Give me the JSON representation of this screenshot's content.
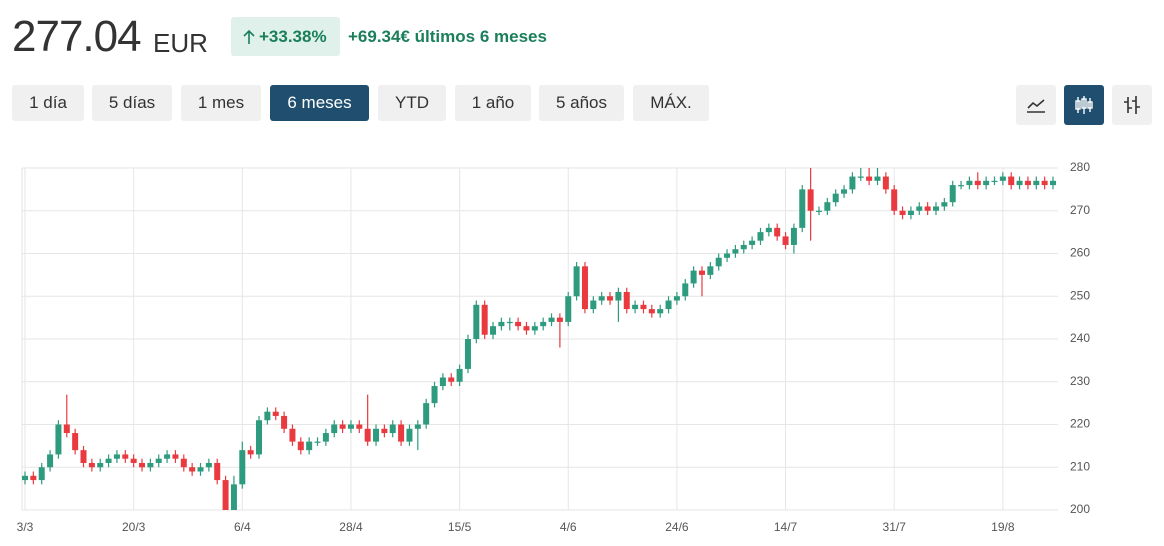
{
  "header": {
    "price": "277.04",
    "currency": "EUR",
    "change_pct": "+33.38%",
    "change_abs": "+69.34€ últimos 6 meses"
  },
  "buttons": [
    "1 día",
    "5 días",
    "1 mes",
    "6 meses",
    "YTD",
    "1 año",
    "5 años",
    "MÁX."
  ],
  "active_button": 3,
  "chart_data": {
    "type": "candlestick",
    "categories": [
      "3/3",
      null,
      null,
      null,
      null,
      null,
      null,
      null,
      null,
      null,
      null,
      null,
      null,
      "20/3",
      null,
      null,
      null,
      null,
      null,
      null,
      null,
      null,
      null,
      null,
      null,
      null,
      "6/4",
      null,
      null,
      null,
      null,
      null,
      null,
      null,
      null,
      null,
      null,
      null,
      null,
      "28/4",
      null,
      null,
      null,
      null,
      null,
      null,
      null,
      null,
      null,
      null,
      null,
      null,
      "15/5",
      null,
      null,
      null,
      null,
      null,
      null,
      null,
      null,
      null,
      null,
      null,
      null,
      "4/6",
      null,
      null,
      null,
      null,
      null,
      null,
      null,
      null,
      null,
      null,
      null,
      null,
      "24/6",
      null,
      null,
      null,
      null,
      null,
      null,
      null,
      null,
      null,
      null,
      null,
      null,
      "14/7",
      null,
      null,
      null,
      null,
      null,
      null,
      null,
      null,
      null,
      null,
      null,
      null,
      "31/7",
      null,
      null,
      null,
      null,
      null,
      null,
      null,
      null,
      null,
      null,
      null,
      null,
      "19/8",
      null,
      null,
      null,
      null,
      null,
      null
    ],
    "open": [
      207,
      208,
      207,
      210,
      213,
      220,
      218,
      214,
      211,
      210,
      211,
      212,
      213,
      212,
      211,
      210,
      211,
      212,
      213,
      212,
      210,
      209,
      210,
      211,
      207,
      200,
      206,
      214,
      213,
      221,
      223,
      222,
      219,
      216,
      214,
      216,
      216,
      218,
      220,
      219,
      220,
      219,
      216,
      219,
      218,
      220,
      216,
      219,
      220,
      225,
      229,
      231,
      230,
      233,
      240,
      248,
      241,
      243,
      244,
      244,
      243,
      242,
      243,
      244,
      245,
      244,
      250,
      257,
      247,
      249,
      250,
      249,
      251,
      247,
      248,
      247,
      246,
      247,
      249,
      250,
      253,
      256,
      255,
      257,
      259,
      260,
      261,
      262,
      263,
      265,
      266,
      264,
      262,
      266,
      275,
      270,
      270,
      272,
      274,
      275,
      278,
      278,
      277,
      278,
      275,
      270,
      269,
      270,
      271,
      270,
      271,
      272,
      276,
      276,
      277,
      276,
      277,
      277,
      278,
      276,
      277,
      276,
      277,
      276
    ],
    "high": [
      209,
      209,
      211,
      214,
      221,
      227,
      219,
      215,
      212,
      212,
      213,
      214,
      214,
      213,
      212,
      212,
      213,
      214,
      214,
      213,
      211,
      211,
      212,
      212,
      208,
      208,
      216,
      215,
      222,
      224,
      224,
      223,
      220,
      217,
      217,
      217,
      219,
      221,
      221,
      221,
      221,
      227,
      220,
      220,
      221,
      221,
      220,
      221,
      226,
      230,
      232,
      232,
      234,
      241,
      249,
      249,
      244,
      245,
      245,
      245,
      244,
      244,
      245,
      246,
      246,
      251,
      258,
      258,
      250,
      251,
      251,
      252,
      252,
      249,
      249,
      248,
      248,
      250,
      251,
      254,
      257,
      257,
      258,
      260,
      261,
      262,
      263,
      264,
      266,
      267,
      267,
      265,
      267,
      276,
      280,
      271,
      273,
      275,
      276,
      279,
      280,
      280,
      280,
      279,
      276,
      271,
      271,
      272,
      272,
      272,
      273,
      277,
      277,
      278,
      279,
      278,
      278,
      279,
      279,
      278,
      278,
      278,
      278,
      278
    ],
    "low": [
      206,
      206,
      206,
      209,
      212,
      217,
      213,
      210,
      209,
      209,
      210,
      211,
      211,
      210,
      209,
      209,
      210,
      211,
      211,
      209,
      208,
      208,
      209,
      206,
      199,
      199,
      205,
      212,
      212,
      220,
      221,
      218,
      215,
      213,
      213,
      215,
      215,
      217,
      218,
      218,
      218,
      215,
      215,
      217,
      217,
      215,
      215,
      214,
      219,
      224,
      228,
      229,
      229,
      232,
      239,
      240,
      240,
      242,
      242,
      242,
      241,
      241,
      242,
      243,
      238,
      243,
      249,
      246,
      246,
      248,
      248,
      244,
      246,
      246,
      246,
      245,
      245,
      246,
      248,
      249,
      252,
      250,
      254,
      256,
      258,
      259,
      260,
      261,
      262,
      264,
      263,
      261,
      260,
      265,
      263,
      269,
      269,
      271,
      273,
      274,
      277,
      276,
      276,
      274,
      269,
      268,
      268,
      269,
      269,
      269,
      270,
      271,
      275,
      275,
      275,
      275,
      276,
      276,
      275,
      275,
      275,
      275,
      275,
      275
    ],
    "close": [
      208,
      207,
      210,
      213,
      220,
      218,
      214,
      211,
      210,
      211,
      212,
      213,
      212,
      211,
      210,
      211,
      212,
      213,
      212,
      210,
      209,
      210,
      211,
      207,
      200,
      206,
      214,
      213,
      221,
      223,
      222,
      219,
      216,
      214,
      216,
      216,
      218,
      220,
      219,
      220,
      219,
      216,
      219,
      218,
      220,
      216,
      219,
      220,
      225,
      229,
      231,
      230,
      233,
      240,
      248,
      241,
      243,
      244,
      244,
      243,
      242,
      243,
      244,
      245,
      244,
      250,
      257,
      247,
      249,
      250,
      249,
      251,
      247,
      248,
      247,
      246,
      247,
      249,
      250,
      253,
      256,
      255,
      257,
      259,
      260,
      261,
      262,
      263,
      265,
      266,
      264,
      262,
      266,
      275,
      270,
      270,
      272,
      274,
      275,
      278,
      278,
      277,
      278,
      275,
      270,
      269,
      270,
      271,
      270,
      271,
      272,
      276,
      276,
      277,
      276,
      277,
      277,
      278,
      276,
      277,
      276,
      277,
      276,
      277
    ],
    "up_color": "#2e9a7e",
    "down_color": "#e83a3f",
    "ylim": [
      200,
      280
    ],
    "yticks": [
      200,
      210,
      220,
      230,
      240,
      250,
      260,
      270,
      280
    ],
    "grid": true,
    "y_axis_side": "right"
  }
}
